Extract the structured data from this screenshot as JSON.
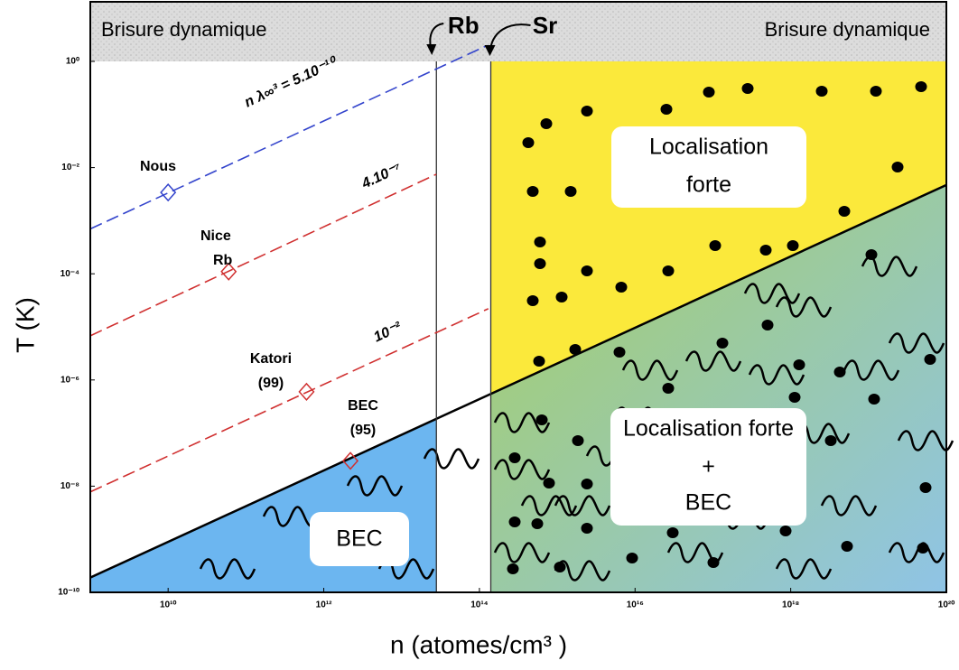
{
  "chart_data": {
    "type": "scatter",
    "x_label": "n (atomes/cm³ )",
    "y_label": "T (K)",
    "xscale": "log",
    "yscale": "log",
    "xlim": [
      1000000000.0,
      1e+20
    ],
    "ylim": [
      1e-10,
      1
    ],
    "xticks": [
      {
        "value": 10000000000.0,
        "label": "10¹⁰"
      },
      {
        "value": 1000000000000.0,
        "label": "10¹²"
      },
      {
        "value": 100000000000000.0,
        "label": "10¹⁴"
      },
      {
        "value": 1e+16,
        "label": "10¹⁶"
      },
      {
        "value": 1e+18,
        "label": "10¹⁸"
      },
      {
        "value": 1e+20,
        "label": "10²⁰"
      }
    ],
    "yticks": [
      {
        "value": 1,
        "label": "10⁰"
      },
      {
        "value": 0.01,
        "label": "10⁻²"
      },
      {
        "value": 0.0001,
        "label": "10⁻⁴"
      },
      {
        "value": 1e-06,
        "label": "10⁻⁶"
      },
      {
        "value": 1e-08,
        "label": "10⁻⁸"
      },
      {
        "value": 1e-10,
        "label": "10⁻¹⁰"
      }
    ],
    "top_band": [
      "Brisure dynamique",
      "Brisure dynamique"
    ],
    "limits": [
      {
        "label": "Rb",
        "x": 28000000000000.0
      },
      {
        "label": "Sr",
        "x": 140000000000000.0
      }
    ],
    "boundary": {
      "x": [
        1000000000.0,
        1e+20
      ],
      "y": [
        1.9e-10,
        0.0047
      ]
    },
    "lines": [
      {
        "label": "n λ∞³ = 5.10⁻¹⁰",
        "x": [
          1000000000.0,
          126000000000000.0
        ],
        "y": [
          0.0007,
          2
        ],
        "color": "#3344cc"
      },
      {
        "label": "4.10⁻⁷",
        "x": [
          1000000000.0,
          28000000000000.0
        ],
        "y": [
          6.8e-06,
          0.0075
        ],
        "color": "#d03030"
      },
      {
        "label": "10⁻²",
        "x": [
          1000000000.0,
          130000000000000.0
        ],
        "y": [
          7.8e-09,
          2.2e-05
        ],
        "color": "#d03030"
      }
    ],
    "points": [
      {
        "label": [
          "Nous"
        ],
        "x": 10000000000.0,
        "y": 0.0034,
        "color": "#3344cc"
      },
      {
        "label": [
          "Nice",
          "Rb"
        ],
        "x": 60000000000.0,
        "y": 0.00011,
        "color": "#d03030"
      },
      {
        "label": [
          "Katori",
          "(99)"
        ],
        "x": 600000000000.0,
        "y": 6e-07,
        "color": "#d03030"
      },
      {
        "label": [
          "BEC",
          "(95)"
        ],
        "x": 2200000000000.0,
        "y": 3e-08,
        "color": "#d03030"
      }
    ],
    "regions": {
      "strong": [
        "Localisation",
        "forte"
      ],
      "both": [
        "Localisation forte",
        "+",
        "BEC"
      ],
      "bec": "BEC"
    }
  }
}
